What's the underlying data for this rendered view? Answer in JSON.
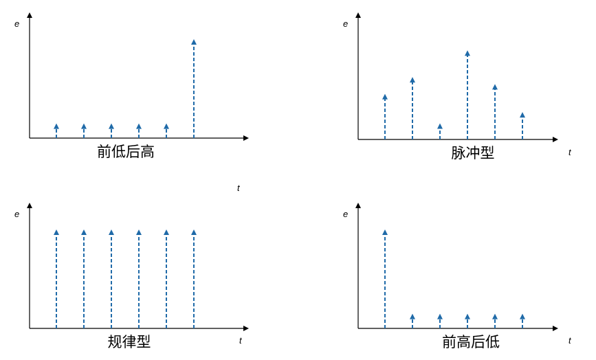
{
  "colors": {
    "pulse": "#1f6aa8",
    "axis": "#000000"
  },
  "chart_data": [
    {
      "type": "bar",
      "title": "前低后高",
      "xlabel": "",
      "ylabel": "e",
      "values": [
        1,
        1,
        1,
        1,
        1,
        7
      ],
      "ylim": [
        0,
        8
      ]
    },
    {
      "type": "bar",
      "title": "脉冲型",
      "xlabel": "t",
      "ylabel": "e",
      "values": [
        3.2,
        4.4,
        1.1,
        6.3,
        3.9,
        1.9
      ],
      "ylim": [
        0,
        8
      ]
    },
    {
      "type": "bar",
      "title": "规律型",
      "xlabel": "t",
      "ylabel": "e",
      "values": [
        7,
        7,
        7,
        7,
        7,
        7
      ],
      "ylim": [
        0,
        8
      ]
    },
    {
      "type": "bar",
      "title": "前高后低",
      "xlabel": "t",
      "ylabel": "e",
      "values": [
        7,
        1,
        1,
        1,
        1,
        1
      ],
      "ylim": [
        0,
        8
      ]
    }
  ],
  "stray_label": "t"
}
